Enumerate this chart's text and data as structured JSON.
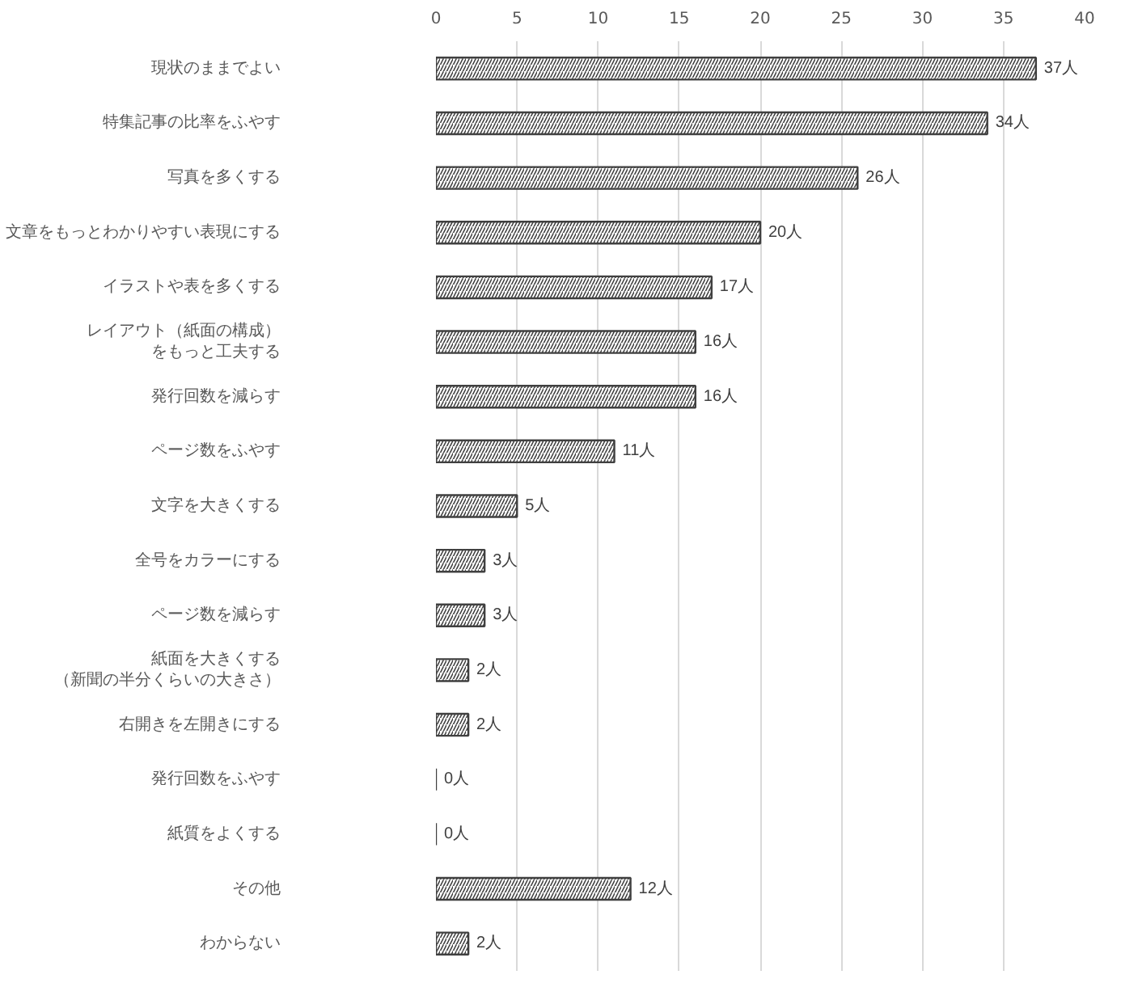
{
  "chart_data": {
    "type": "bar",
    "orientation": "horizontal",
    "categories": [
      "現状のままでよい",
      "特集記事の比率をふやす",
      "写真を多くする",
      "文章をもっとわかりやすい表現にする",
      "イラストや表を多くする",
      "レイアウト（紙面の構成）をもっと工夫する",
      "発行回数を減らす",
      "ページ数をふやす",
      "文字を大きくする",
      "全号をカラーにする",
      "ページ数を減らす",
      "紙面を大きくする（新聞の半分くらいの大きさ）",
      "右開きを左開きにする",
      "発行回数をふやす",
      "紙質をよくする",
      "その他",
      "わからない"
    ],
    "values": [
      37,
      34,
      26,
      20,
      17,
      16,
      16,
      11,
      5,
      3,
      3,
      2,
      2,
      0,
      0,
      12,
      2
    ],
    "value_labels": [
      "37人",
      "34人",
      "26人",
      "20人",
      "17人",
      "16人",
      "16人",
      "11人",
      "5人",
      "3人",
      "3人",
      "2人",
      "2人",
      "0人",
      "0人",
      "12人",
      "2人"
    ],
    "color": "#404040",
    "x2lim": [
      0,
      40
    ],
    "x2ticks": [
      0,
      5,
      10,
      15,
      20,
      25,
      30,
      35,
      40
    ],
    "grid": "x"
  }
}
